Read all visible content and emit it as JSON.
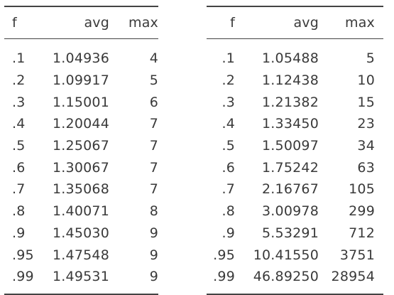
{
  "left_table": {
    "headers": {
      "f": "f",
      "avg": "avg",
      "max": "max"
    },
    "rows": [
      {
        "f": ".1",
        "avg": "1.04936",
        "max": "4"
      },
      {
        "f": ".2",
        "avg": "1.09917",
        "max": "5"
      },
      {
        "f": ".3",
        "avg": "1.15001",
        "max": "6"
      },
      {
        "f": ".4",
        "avg": "1.20044",
        "max": "7"
      },
      {
        "f": ".5",
        "avg": "1.25067",
        "max": "7"
      },
      {
        "f": ".6",
        "avg": "1.30067",
        "max": "7"
      },
      {
        "f": ".7",
        "avg": "1.35068",
        "max": "7"
      },
      {
        "f": ".8",
        "avg": "1.40071",
        "max": "8"
      },
      {
        "f": ".9",
        "avg": "1.45030",
        "max": "9"
      },
      {
        "f": ".95",
        "avg": "1.47548",
        "max": "9"
      },
      {
        "f": ".99",
        "avg": "1.49531",
        "max": "9"
      }
    ]
  },
  "right_table": {
    "headers": {
      "f": "f",
      "avg": "avg",
      "max": "max"
    },
    "rows": [
      {
        "f": ".1",
        "avg": "1.05488",
        "max": "5"
      },
      {
        "f": ".2",
        "avg": "1.12438",
        "max": "10"
      },
      {
        "f": ".3",
        "avg": "1.21382",
        "max": "15"
      },
      {
        "f": ".4",
        "avg": "1.33450",
        "max": "23"
      },
      {
        "f": ".5",
        "avg": "1.50097",
        "max": "34"
      },
      {
        "f": ".6",
        "avg": "1.75242",
        "max": "63"
      },
      {
        "f": ".7",
        "avg": "2.16767",
        "max": "105"
      },
      {
        "f": ".8",
        "avg": "3.00978",
        "max": "299"
      },
      {
        "f": ".9",
        "avg": "5.53291",
        "max": "712"
      },
      {
        "f": ".95",
        "avg": "10.41550",
        "max": "3751"
      },
      {
        "f": ".99",
        "avg": "46.89250",
        "max": "28954"
      }
    ]
  }
}
